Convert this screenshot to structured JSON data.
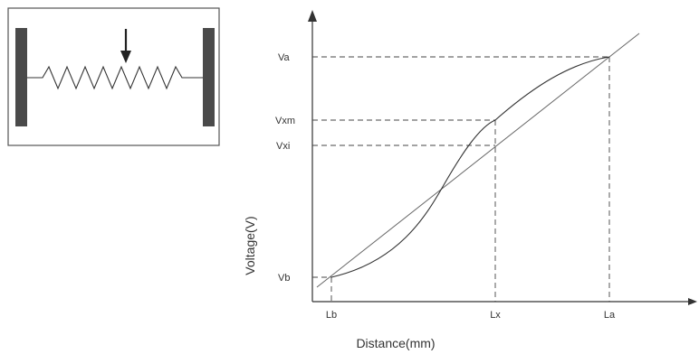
{
  "colors": {
    "stroke": "#333333",
    "bar": "#4a4a4a",
    "box_border": "#555555",
    "background": "#ffffff"
  },
  "potentiometer_inset": {
    "icons": [
      "terminal-bar-left-icon",
      "terminal-bar-right-icon",
      "resistor-zigzag-icon",
      "wiper-arrow-down-icon"
    ]
  },
  "graph": {
    "x_axis_title": "Distance(mm)",
    "y_axis_title": "Voltage(V)",
    "x_ticks": [
      "Lb",
      "Lx",
      "La"
    ],
    "y_ticks": [
      "Va",
      "Vxm",
      "Vxi",
      "Vb"
    ]
  }
}
